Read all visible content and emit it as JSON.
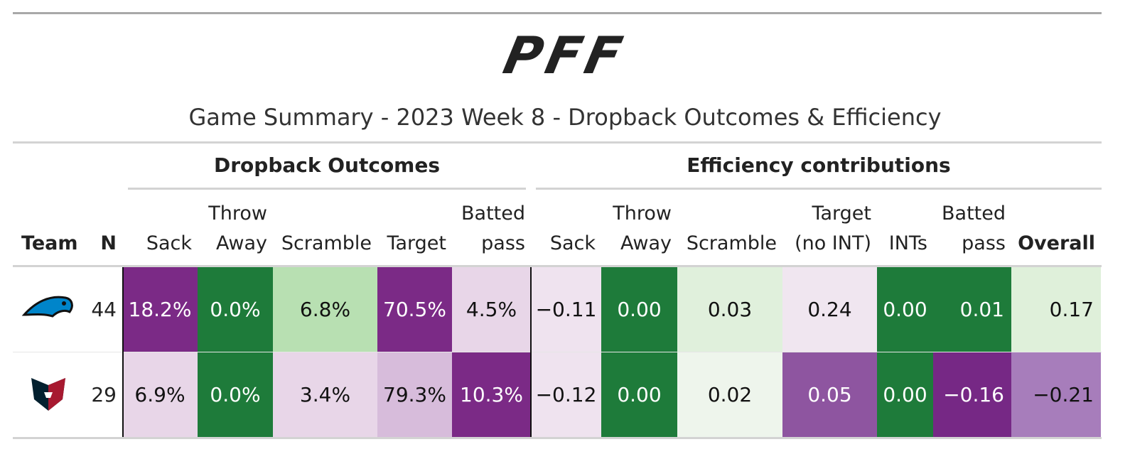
{
  "logo": "PFF",
  "title": "Game Summary - 2023 Week 8 - Dropback Outcomes & Efficiency",
  "spanners": [
    "Dropback Outcomes",
    "Efficiency contributions"
  ],
  "columns": [
    [
      "Team"
    ],
    [
      "N"
    ],
    [
      "Sack"
    ],
    [
      "Throw",
      "Away"
    ],
    [
      "Scramble"
    ],
    [
      "Target"
    ],
    [
      "Batted",
      "pass"
    ],
    [
      "Sack"
    ],
    [
      "Throw",
      "Away"
    ],
    [
      "Scramble"
    ],
    [
      "Target",
      "(no INT)"
    ],
    [
      "INTs"
    ],
    [
      "Batted",
      "pass"
    ],
    [
      "Overall"
    ]
  ],
  "rows": [
    {
      "n": "44",
      "cells": [
        "18.2%",
        "0.0%",
        "6.8%",
        "70.5%",
        "4.5%",
        "−0.11",
        "0.00",
        "0.03",
        "0.24",
        "0.00",
        "0.01",
        "0.17"
      ],
      "fills": [
        "#7b2a86",
        "#1e7b3a",
        "#b8e0b2",
        "#7b2a86",
        "#e8d6e8",
        "#efe3ef",
        "#1e7b3a",
        "#e0f0dc",
        "#f0e6f0",
        "#1e7b3a",
        "#1e7b3a",
        "#dff0da"
      ]
    },
    {
      "n": "29",
      "cells": [
        "6.9%",
        "0.0%",
        "3.4%",
        "79.3%",
        "10.3%",
        "−0.12",
        "0.00",
        "0.02",
        "0.05",
        "0.00",
        "−0.16",
        "−0.21"
      ],
      "fills": [
        "#e8d6e8",
        "#1e7b3a",
        "#e8d6e8",
        "#d7bcdb",
        "#7b2a86",
        "#efe3ef",
        "#1e7b3a",
        "#eef5ec",
        "#8e55a0",
        "#1e7b3a",
        "#762885",
        "#a77dbb"
      ]
    }
  ]
}
